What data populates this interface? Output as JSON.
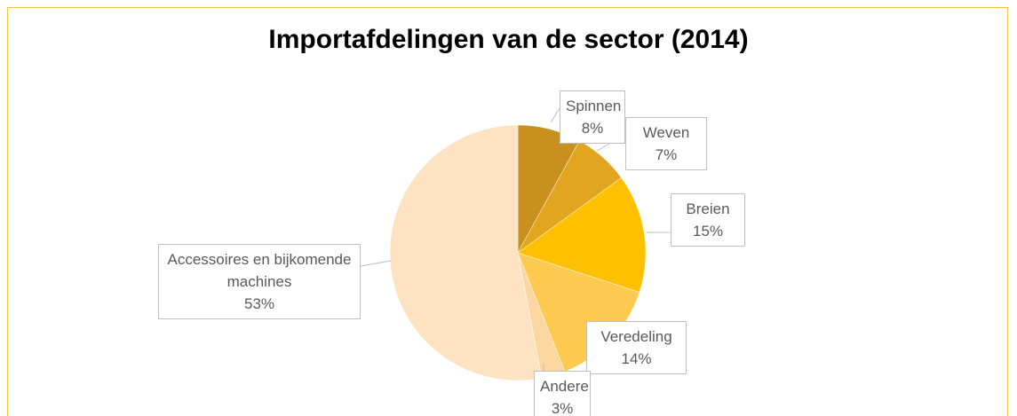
{
  "chart_data": {
    "type": "pie",
    "title": "Importafdelingen van de sector (2014)",
    "categories": [
      "Spinnen",
      "Weven",
      "Breien",
      "Veredeling",
      "Andere",
      "Accessoires en bijkomende machines"
    ],
    "values": [
      8,
      7,
      15,
      14,
      3,
      53
    ],
    "value_labels": [
      "8%",
      "7%",
      "15%",
      "14%",
      "3%",
      "53%"
    ],
    "colors": [
      "#c8901c",
      "#e2a51f",
      "#ffc000",
      "#ffca50",
      "#fcd7a0",
      "#fde3c2"
    ]
  }
}
